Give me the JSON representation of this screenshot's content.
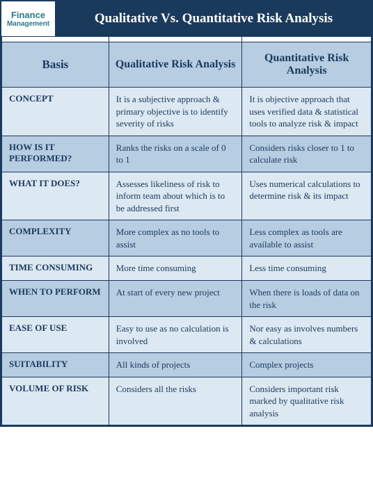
{
  "logo": {
    "line1": "Finance",
    "line2": "Management"
  },
  "title": "Qualitative Vs. Quantitative Risk Analysis",
  "columns": {
    "basis": "Basis",
    "qual": "Qualitative Risk Analysis",
    "quant": "Quantitative Risk Analysis"
  },
  "rows": [
    {
      "basis": "CONCEPT",
      "qual": "It is a subjective approach & primary objective is to identify severity of risks",
      "quant": "It is objective approach that uses verified data & statistical tools to analyze risk & impact"
    },
    {
      "basis": "HOW IS IT PERFORMED?",
      "qual": "Ranks the risks on a scale of 0 to 1",
      "quant": "Considers risks closer to 1 to calculate risk"
    },
    {
      "basis": "WHAT IT DOES?",
      "qual": "Assesses likeliness of risk to inform team about which is to be addressed first",
      "quant": "Uses numerical calculations to determine risk & its impact"
    },
    {
      "basis": "COMPLEXITY",
      "qual": "More complex as no tools to assist",
      "quant": "Less complex as tools are available to assist"
    },
    {
      "basis": "TIME CONSUMING",
      "qual": "More time consuming",
      "quant": "Less time consuming"
    },
    {
      "basis": "WHEN TO PERFORM",
      "qual": "At start of every new project",
      "quant": "When there is loads of data on the risk"
    },
    {
      "basis": "EASE OF USE",
      "qual": "Easy to use as no calculation is involved",
      "quant": "Nor easy as involves numbers & calculations"
    },
    {
      "basis": "SUITABILITY",
      "qual": "All kinds of projects",
      "quant": "Complex projects"
    },
    {
      "basis": "VOLUME OF RISK",
      "qual": "Considers all the risks",
      "quant": "Considers important risk marked by qualitative risk analysis"
    }
  ],
  "colors": {
    "dark": "#1a3a5c",
    "light": "#dce8f2",
    "mid": "#b6cde2",
    "logo": "#2a7a8c"
  }
}
